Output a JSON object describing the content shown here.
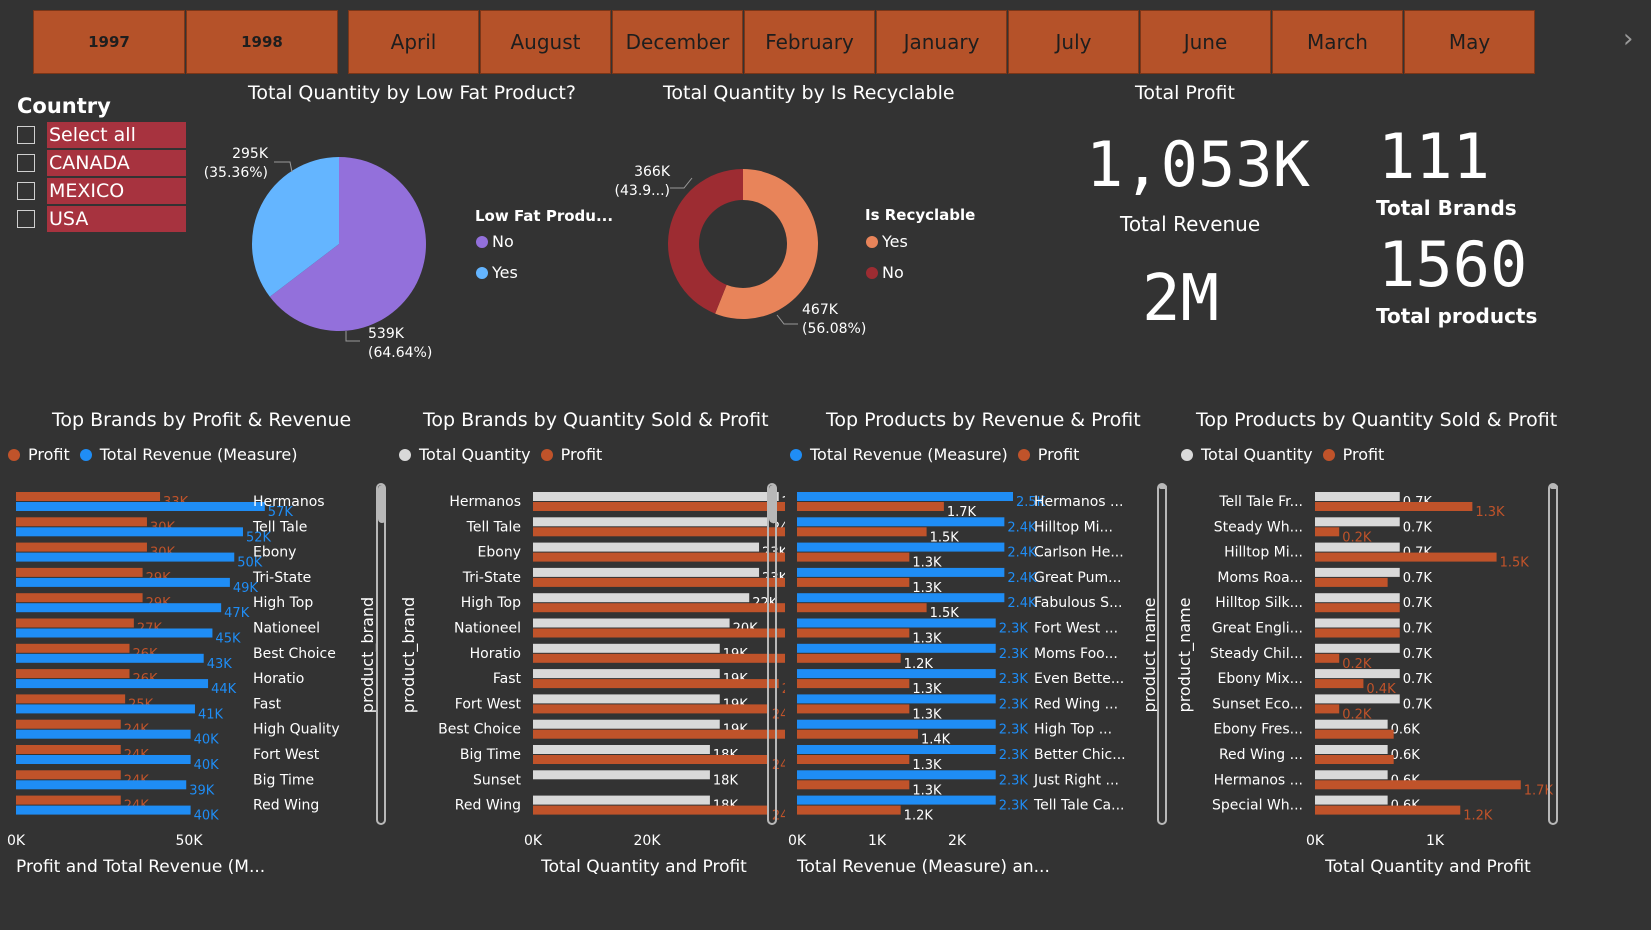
{
  "slicer": {
    "items": [
      {
        "label": "1997",
        "bold": true
      },
      {
        "label": "1998",
        "bold": true
      },
      {
        "label": "April"
      },
      {
        "label": "August"
      },
      {
        "label": "December"
      },
      {
        "label": "February"
      },
      {
        "label": "January"
      },
      {
        "label": "July"
      },
      {
        "label": "June"
      },
      {
        "label": "March"
      },
      {
        "label": "May"
      }
    ],
    "next_icon": "chevron-right-icon"
  },
  "country_filter": {
    "title": "Country",
    "options": [
      "Select all",
      "CANADA",
      "MEXICO",
      "USA"
    ]
  },
  "colors": {
    "orange": "#c0532a",
    "blue": "#1f8df5",
    "grey": "#d9d9d9",
    "purple": "#9370db",
    "lightblue": "#64b5ff",
    "salmon": "#e8845a",
    "darkred": "#9d2c32",
    "slicer": "#b55229"
  },
  "kpis": {
    "profit_title": "Total Profit",
    "profit_value": "1,053K",
    "revenue_value": "2M",
    "revenue_label": "Total Revenue",
    "brands_value": "111",
    "brands_label": "Total Brands",
    "products_value": "1560",
    "products_label": "Total products"
  },
  "chart_data": [
    {
      "type": "pie",
      "title": "Total Quantity by Low Fat Product?",
      "legend_title": "Low Fat Produ...",
      "slices": [
        {
          "name": "No",
          "value": 539,
          "label": "539K",
          "pct": "(64.64%)"
        },
        {
          "name": "Yes",
          "value": 295,
          "label": "295K",
          "pct": "(35.36%)"
        }
      ]
    },
    {
      "type": "pie",
      "title": "Total Quantity by Is Recyclable",
      "legend_title": "Is Recyclable",
      "slices": [
        {
          "name": "Yes",
          "value": 467,
          "label": "467K",
          "pct": "(56.08%)"
        },
        {
          "name": "No",
          "value": 366,
          "label": "366K",
          "pct": "(43.9...)"
        }
      ]
    },
    {
      "type": "bar",
      "orientation": "horizontal",
      "title": "Top Brands by Profit & Revenue",
      "xlabel": "Profit and Total Revenue (M...",
      "ylabel": "product_brand",
      "xticks": [
        "0K",
        "50K"
      ],
      "xlim": [
        0,
        63
      ],
      "categories": [
        "Hermanos",
        "Tell Tale",
        "Ebony",
        "Tri-State",
        "High Top",
        "Nationeel",
        "Best Choice",
        "Horatio",
        "Fast",
        "High Quality",
        "Fort West",
        "Big Time",
        "Red Wing"
      ],
      "series": [
        {
          "name": "Profit",
          "values": [
            33,
            30,
            30,
            29,
            29,
            27,
            26,
            26,
            25,
            24,
            24,
            24,
            24
          ],
          "labels": [
            "33K",
            "30K",
            "30K",
            "29K",
            "29K",
            "27K",
            "26K",
            "26K",
            "25K",
            "24K",
            "24K",
            "24K",
            "24K"
          ]
        },
        {
          "name": "Total Revenue (Measure)",
          "values": [
            57,
            52,
            50,
            49,
            47,
            45,
            43,
            44,
            41,
            40,
            40,
            39,
            40
          ],
          "labels": [
            "57K",
            "52K",
            "50K",
            "49K",
            "47K",
            "45K",
            "43K",
            "44K",
            "41K",
            "40K",
            "40K",
            "39K",
            "40K"
          ]
        }
      ]
    },
    {
      "type": "bar",
      "orientation": "horizontal",
      "title": "Top Brands by Quantity Sold & Profit",
      "xlabel": "Total Quantity and Profit",
      "ylabel": "product_brand",
      "xticks": [
        "0K",
        "20K"
      ],
      "xlim": [
        0,
        35
      ],
      "categories": [
        "Hermanos",
        "Tell Tale",
        "Ebony",
        "Tri-State",
        "High Top",
        "Nationeel",
        "Horatio",
        "Fast",
        "Fort West",
        "Best Choice",
        "Big Time",
        "Sunset",
        "Red Wing"
      ],
      "series": [
        {
          "name": "Total Quantity",
          "values": [
            25,
            24,
            23,
            23,
            22,
            20,
            19,
            19,
            19,
            19,
            18,
            18,
            18
          ],
          "labels": [
            "25K",
            "24K",
            "23K",
            "23K",
            "22K",
            "20K",
            "19K",
            "19K",
            "19K",
            "19K",
            "18K",
            "18K",
            "18K"
          ]
        },
        {
          "name": "Profit",
          "values": [
            33,
            30,
            30,
            29,
            29,
            27,
            26,
            25,
            24,
            26,
            24,
            null,
            24
          ],
          "labels": [
            "33K",
            "30K",
            "30K",
            "29K",
            "29K",
            "27K",
            "26K",
            "25K",
            "24K",
            "26K",
            "24K",
            "",
            "24K"
          ]
        }
      ]
    },
    {
      "type": "bar",
      "orientation": "horizontal",
      "title": "Top Products by Revenue & Profit",
      "xlabel": "Total Revenue (Measure) an...",
      "ylabel": "product_name",
      "xticks": [
        "0K",
        "1K",
        "2K"
      ],
      "xlim": [
        0,
        2.5
      ],
      "categories": [
        "Hermanos ...",
        "Hilltop Mi...",
        "Carlson He...",
        "Great Pum...",
        "Fabulous S...",
        "Fort West ...",
        "Moms Foo...",
        "Even Bette...",
        "Red Wing ...",
        "High Top ...",
        "Better Chic...",
        "Just Right ...",
        "Tell Tale Ca..."
      ],
      "series": [
        {
          "name": "Total Revenue (Measure)",
          "values": [
            2.5,
            2.4,
            2.4,
            2.4,
            2.4,
            2.3,
            2.3,
            2.3,
            2.3,
            2.3,
            2.3,
            2.3,
            2.3
          ],
          "labels": [
            "2.5K",
            "2.4K",
            "2.4K",
            "2.4K",
            "2.4K",
            "2.3K",
            "2.3K",
            "2.3K",
            "2.3K",
            "2.3K",
            "2.3K",
            "2.3K",
            "2.3K"
          ]
        },
        {
          "name": "Profit",
          "values": [
            1.7,
            1.5,
            1.3,
            1.3,
            1.5,
            1.3,
            1.2,
            1.3,
            1.3,
            1.4,
            1.3,
            1.3,
            1.2
          ],
          "labels": [
            "1.7K",
            "1.5K",
            "1.3K",
            "1.3K",
            "1.5K",
            "1.3K",
            "1.2K",
            "1.3K",
            "1.3K",
            "1.4K",
            "1.3K",
            "1.3K",
            "1.2K"
          ]
        }
      ]
    },
    {
      "type": "bar",
      "orientation": "horizontal",
      "title": "Top Products by Quantity Sold & Profit",
      "xlabel": "Total Quantity and Profit",
      "ylabel": "product_name",
      "xticks": [
        "0K",
        "1K"
      ],
      "xlim": [
        0,
        1.9
      ],
      "categories": [
        "Tell Tale Fr...",
        "Steady Wh...",
        "Hilltop Mi...",
        "Moms Roa...",
        "Hilltop Silk...",
        "Great Engli...",
        "Steady Chil...",
        "Ebony Mix...",
        "Sunset Eco...",
        "Ebony Fres...",
        "Red Wing ...",
        "Hermanos ...",
        "Special Wh..."
      ],
      "series": [
        {
          "name": "Total Quantity",
          "values": [
            0.7,
            0.7,
            0.7,
            0.7,
            0.7,
            0.7,
            0.7,
            0.7,
            0.7,
            0.6,
            0.6,
            0.6,
            0.6
          ],
          "labels": [
            "0.7K",
            "0.7K",
            "0.7K",
            "0.7K",
            "0.7K",
            "0.7K",
            "0.7K",
            "0.7K",
            "0.7K",
            "0.6K",
            "0.6K",
            "0.6K",
            "0.6K"
          ]
        },
        {
          "name": "Profit",
          "values": [
            1.3,
            0.2,
            1.5,
            0.6,
            0.7,
            0.7,
            0.2,
            0.4,
            0.2,
            0.65,
            0.65,
            1.7,
            1.2
          ],
          "labels": [
            "1.3K",
            "0.2K",
            "1.5K",
            "",
            "",
            "",
            "0.2K",
            "0.4K",
            "0.2K",
            "",
            "",
            "1.7K",
            "1.2K"
          ]
        }
      ]
    }
  ]
}
